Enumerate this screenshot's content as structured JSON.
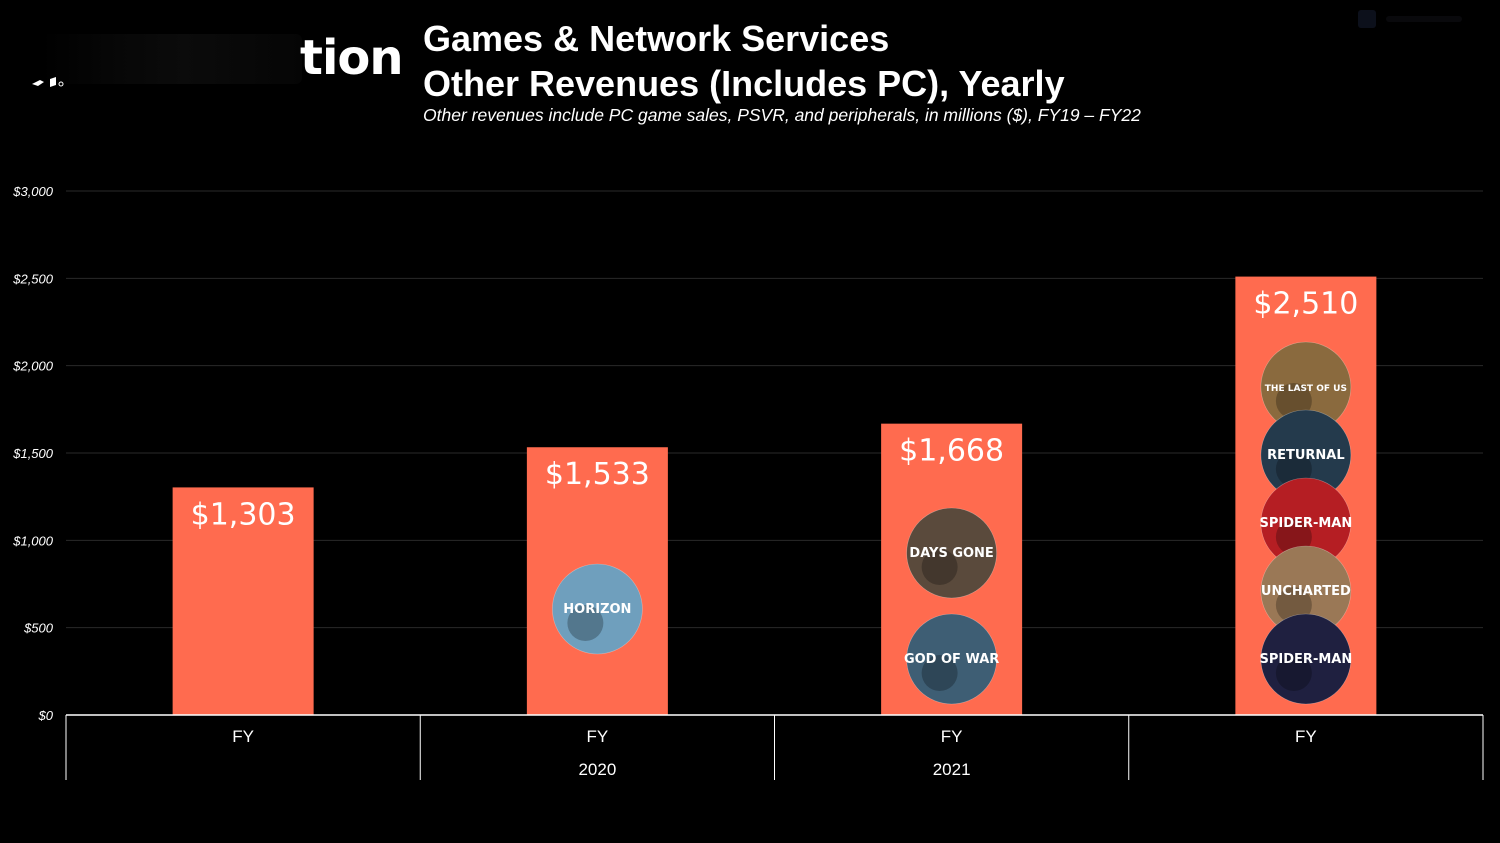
{
  "header": {
    "brand_text": "tion",
    "title_line1": "Games & Network Services",
    "title_line2": "Other Revenues (Includes PC), Yearly",
    "subtitle": "Other revenues include PC game sales, PSVR, and peripherals, in millions ($), FY19 – FY22"
  },
  "colors": {
    "bar": "#ff6b4f",
    "background": "#000000",
    "grid": "#2a2a2a",
    "text": "#ffffff"
  },
  "chart_data": {
    "type": "bar",
    "title": "Games & Network Services Other Revenues (Includes PC), Yearly",
    "subtitle": "Other revenues include PC game sales, PSVR, and peripherals, in millions ($), FY19 – FY22",
    "categories": [
      {
        "line1": "FY",
        "line2": ""
      },
      {
        "line1": "FY",
        "line2": "2020"
      },
      {
        "line1": "FY",
        "line2": "2021"
      },
      {
        "line1": "FY",
        "line2": ""
      }
    ],
    "values": [
      1303,
      1533,
      1668,
      2510
    ],
    "value_labels": [
      "$1,303",
      "$1,533",
      "$1,668",
      "$2,510"
    ],
    "yticks": [
      0,
      500,
      1000,
      1500,
      2000,
      2500,
      3000
    ],
    "ytick_labels": [
      "$0",
      "$500",
      "$1,000",
      "$1,500",
      "$2,000",
      "$2,500",
      "$3,000"
    ],
    "ylim": [
      0,
      3000
    ],
    "grid": true,
    "legend": "none",
    "game_badges": [
      [],
      [
        {
          "text": "HORIZON",
          "color": "#6f9fbd",
          "icon": "horizon-zero-dawn-badge"
        }
      ],
      [
        {
          "text": "DAYS GONE",
          "color": "#5a4a3c",
          "icon": "days-gone-badge"
        },
        {
          "text": "GOD OF WAR",
          "color": "#3e5e74",
          "icon": "god-of-war-badge"
        }
      ],
      [
        {
          "text": "THE LAST OF US",
          "color": "#8a6a3e",
          "icon": "the-last-of-us-badge"
        },
        {
          "text": "RETURNAL",
          "color": "#243a4c",
          "icon": "returnal-badge"
        },
        {
          "text": "SPIDER-MAN",
          "color": "#b51e23",
          "icon": "spider-man-remastered-badge"
        },
        {
          "text": "UNCHARTED",
          "color": "#9a7856",
          "icon": "uncharted-badge"
        },
        {
          "text": "SPIDER-MAN",
          "color": "#1f2040",
          "icon": "spider-man-miles-morales-badge"
        }
      ]
    ]
  }
}
